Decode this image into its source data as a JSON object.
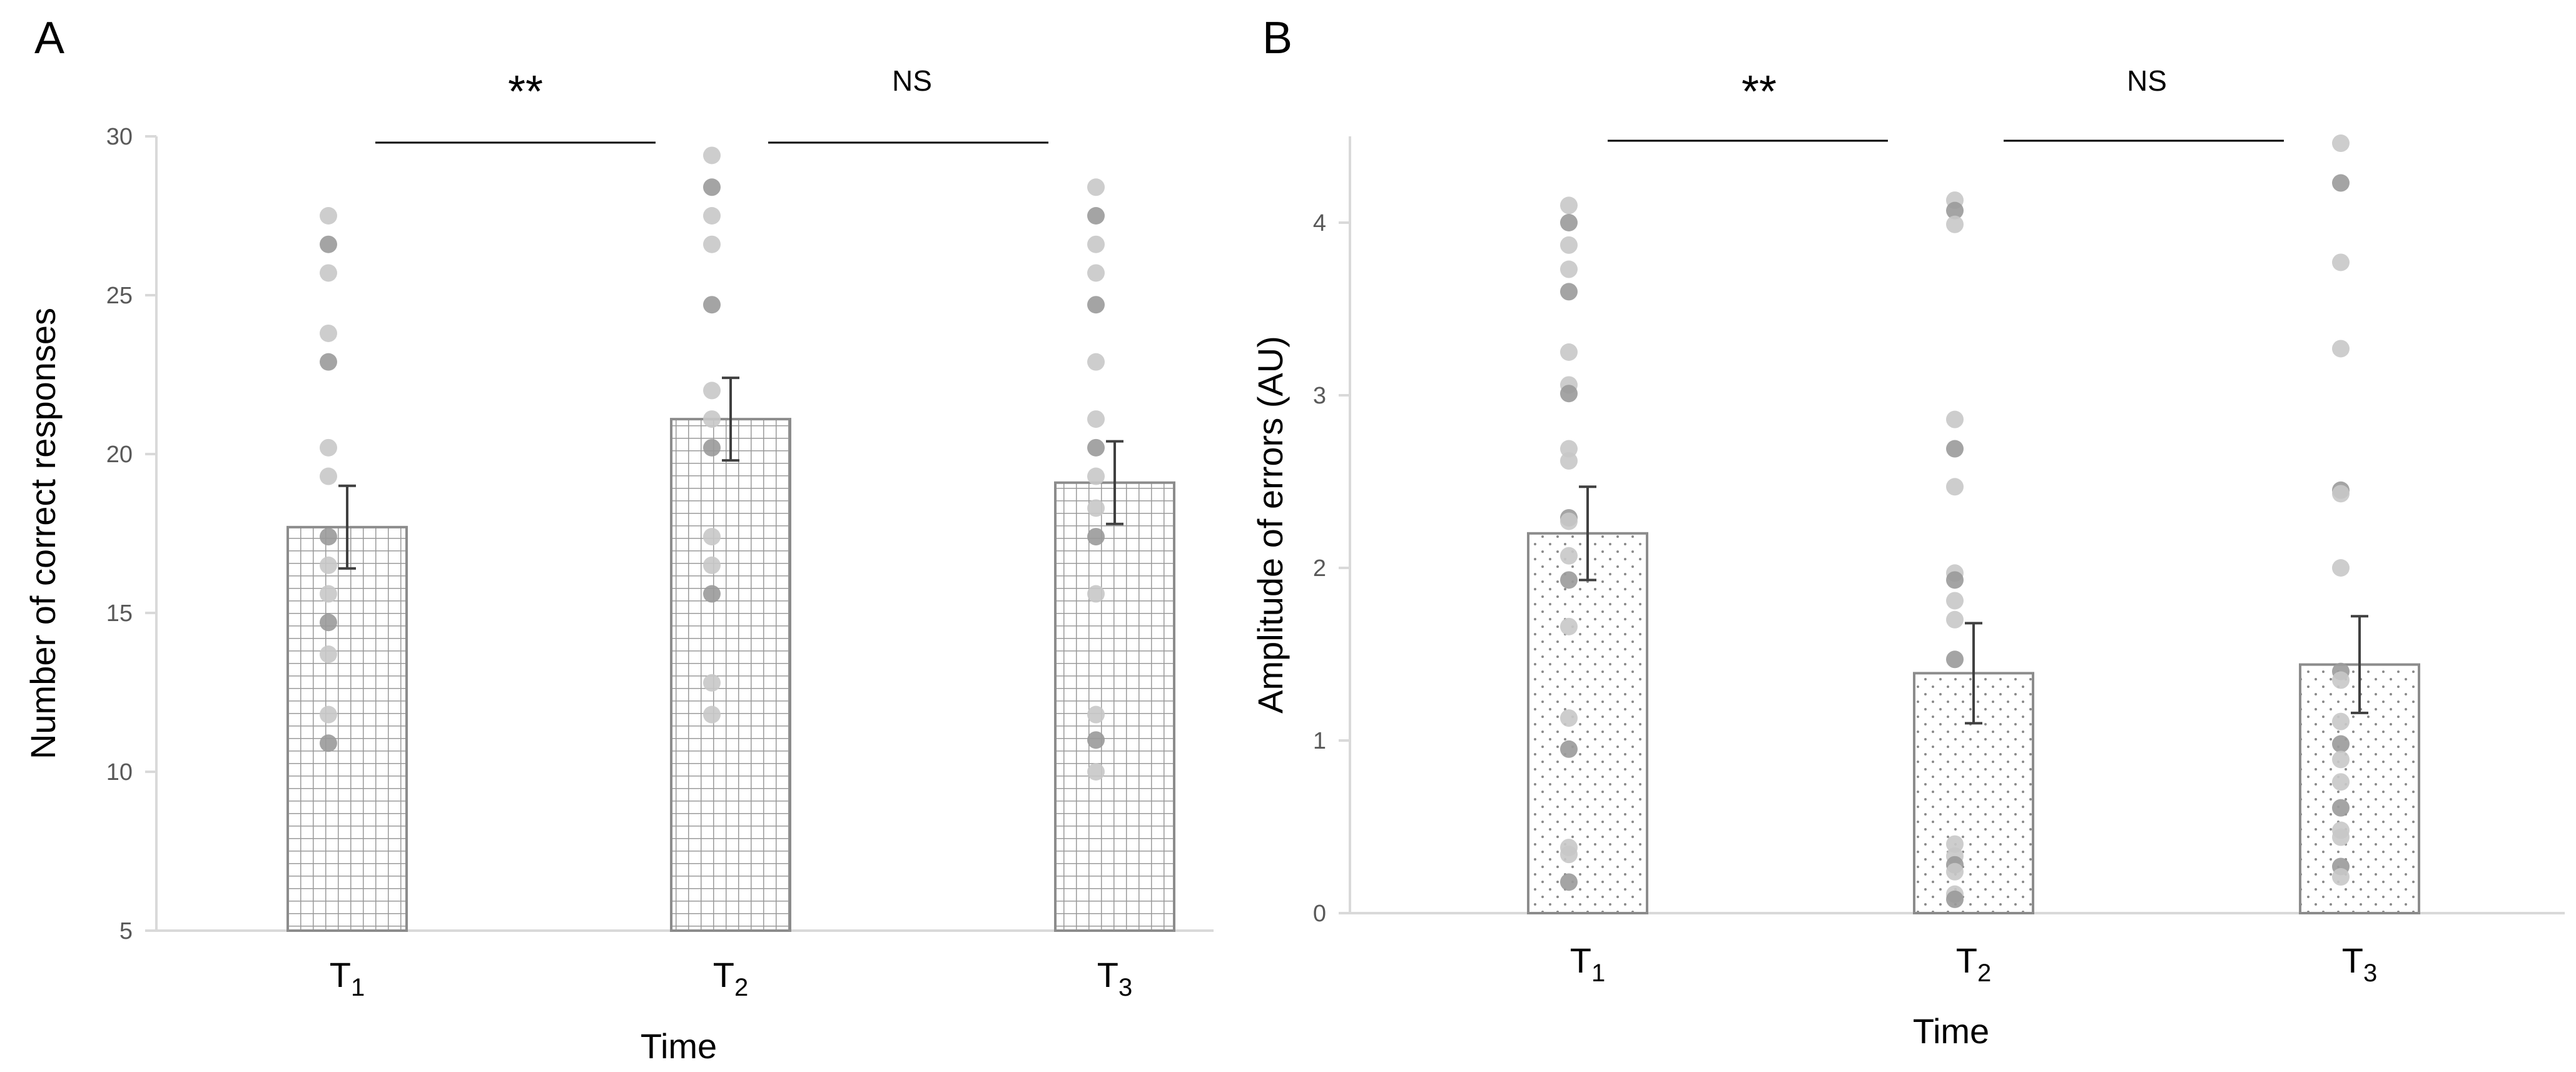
{
  "chart_data": [
    {
      "panel_label": "A",
      "type": "bar",
      "categories": [
        "T1",
        "T2",
        "T3"
      ],
      "category_labels": [
        {
          "main": "T",
          "sub": "1"
        },
        {
          "main": "T",
          "sub": "2"
        },
        {
          "main": "T",
          "sub": "3"
        }
      ],
      "values": [
        17.7,
        21.1,
        19.1
      ],
      "error_bars": [
        {
          "low": 16.4,
          "high": 19.0
        },
        {
          "low": 19.8,
          "high": 22.4
        },
        {
          "low": 17.8,
          "high": 20.4
        }
      ],
      "points": [
        [
          27.5,
          26.6,
          25.7,
          23.8,
          22.9,
          20.2,
          19.3,
          17.4,
          16.5,
          15.6,
          14.7,
          13.7,
          11.8,
          10.9
        ],
        [
          29.4,
          28.4,
          27.5,
          26.6,
          24.7,
          22.0,
          21.1,
          20.2,
          17.4,
          16.5,
          15.6,
          12.8,
          11.8
        ],
        [
          28.4,
          27.5,
          26.6,
          25.7,
          24.7,
          22.9,
          21.1,
          20.2,
          19.3,
          18.3,
          17.4,
          15.6,
          11.8,
          11.0,
          10.0
        ]
      ],
      "bar_pattern": "grid",
      "xlabel": "Time",
      "ylabel": "Number of correct responses",
      "ylim": [
        5,
        30
      ],
      "yticks": [
        5,
        10,
        15,
        20,
        25,
        30
      ],
      "significance": [
        {
          "from": "T1",
          "to": "T2",
          "label": "**"
        },
        {
          "from": "T2",
          "to": "T3",
          "label": "NS"
        }
      ],
      "legend": "none",
      "grid": false
    },
    {
      "panel_label": "B",
      "type": "bar",
      "categories": [
        "T1",
        "T2",
        "T3"
      ],
      "category_labels": [
        {
          "main": "T",
          "sub": "1"
        },
        {
          "main": "T",
          "sub": "2"
        },
        {
          "main": "T",
          "sub": "3"
        }
      ],
      "values": [
        2.2,
        1.39,
        1.44
      ],
      "error_bars": [
        {
          "low": 1.93,
          "high": 2.47
        },
        {
          "low": 1.1,
          "high": 1.68
        },
        {
          "low": 1.16,
          "high": 1.72
        }
      ],
      "points": [
        [
          4.1,
          4.0,
          3.87,
          3.73,
          3.6,
          3.25,
          3.06,
          3.01,
          2.69,
          2.62,
          2.29,
          2.27,
          2.07,
          1.93,
          1.66,
          1.13,
          0.95,
          0.38,
          0.34,
          0.18
        ],
        [
          4.13,
          4.07,
          3.99,
          2.86,
          2.69,
          2.47,
          1.97,
          1.93,
          1.81,
          1.7,
          1.47,
          0.4,
          0.33,
          0.28,
          0.24,
          0.11,
          0.08
        ],
        [
          4.46,
          4.23,
          3.77,
          3.27,
          2.45,
          2.43,
          2.0,
          1.4,
          1.35,
          1.11,
          0.98,
          0.89,
          0.76,
          0.61,
          0.48,
          0.44,
          0.27,
          0.21
        ]
      ],
      "bar_pattern": "dots",
      "xlabel": "Time",
      "ylabel": "Amplitude of errors (AU)",
      "ylim": [
        0,
        4.5
      ],
      "yticks": [
        0,
        1,
        2,
        3,
        4
      ],
      "significance": [
        {
          "from": "T1",
          "to": "T2",
          "label": "**"
        },
        {
          "from": "T2",
          "to": "T3",
          "label": "NS"
        }
      ],
      "legend": "none",
      "grid": false
    }
  ],
  "colors": {
    "axis": "#d9d9d9",
    "tick_text": "#595959",
    "label_text": "#000000",
    "bar_border": "#8c8c8c",
    "bar_pattern": "#a0a0a0",
    "point_light": "#c8c8c8",
    "point_dark": "#9a9a9a",
    "error_bar": "#404040",
    "significance_line": "#000000"
  }
}
